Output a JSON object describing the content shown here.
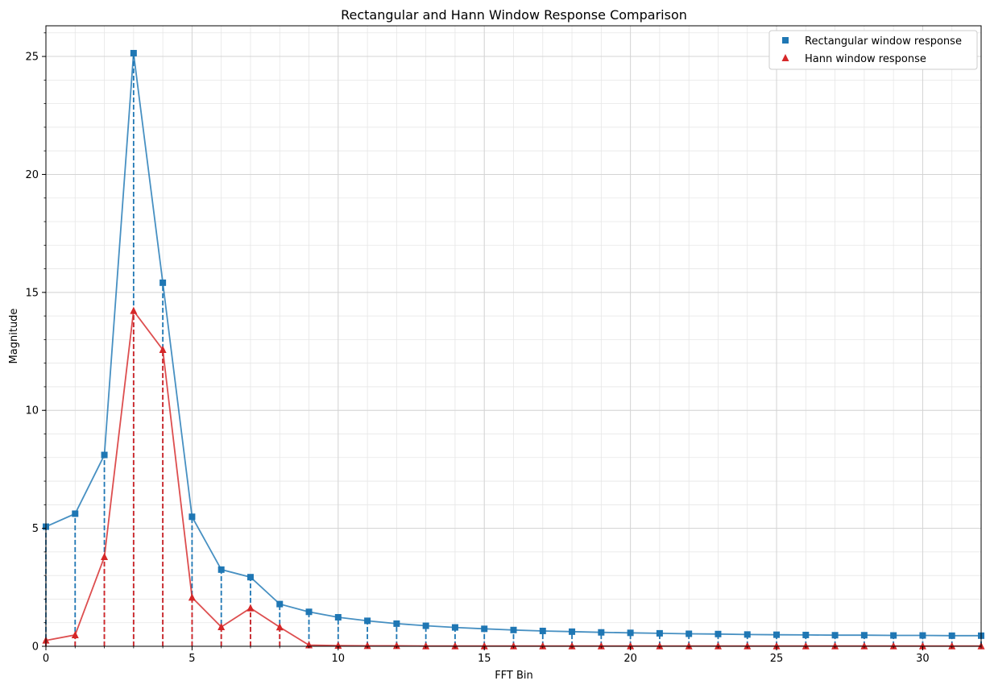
{
  "chart_data": {
    "type": "line",
    "title": "Rectangular and Hann Window Response Comparison",
    "xlabel": "FFT Bin",
    "ylabel": "Magnitude",
    "xlim": [
      0,
      32
    ],
    "ylim": [
      0,
      26.3
    ],
    "x_ticks": [
      0,
      5,
      10,
      15,
      20,
      25,
      30
    ],
    "y_ticks": [
      0,
      5,
      10,
      15,
      20,
      25
    ],
    "x_minor_step": 1,
    "y_minor_step": 1,
    "grid": true,
    "legend_position": "top-right",
    "stem_lines": true,
    "x": [
      0,
      1,
      2,
      3,
      4,
      5,
      6,
      7,
      8,
      9,
      10,
      11,
      12,
      13,
      14,
      15,
      16,
      17,
      18,
      19,
      20,
      21,
      22,
      23,
      24,
      25,
      26,
      27,
      28,
      29,
      30,
      31,
      32
    ],
    "series": [
      {
        "name": "Rectangular window response",
        "marker": "square",
        "color": "#1f77b4",
        "values": [
          5.07,
          5.62,
          8.11,
          25.14,
          15.41,
          5.49,
          3.25,
          2.93,
          1.79,
          1.46,
          1.23,
          1.08,
          0.96,
          0.87,
          0.8,
          0.74,
          0.69,
          0.65,
          0.62,
          0.59,
          0.57,
          0.55,
          0.53,
          0.52,
          0.5,
          0.49,
          0.48,
          0.47,
          0.47,
          0.46,
          0.46,
          0.45,
          0.45
        ]
      },
      {
        "name": "Hann window response",
        "marker": "triangle",
        "color": "#d62728",
        "values": [
          0.25,
          0.48,
          3.79,
          14.22,
          12.57,
          2.07,
          0.82,
          1.62,
          0.81,
          0.05,
          0.03,
          0.02,
          0.02,
          0.01,
          0.01,
          0.01,
          0.01,
          0.01,
          0.01,
          0.01,
          0.01,
          0.01,
          0.01,
          0.01,
          0.01,
          0.01,
          0.01,
          0.01,
          0.01,
          0.01,
          0.01,
          0.01,
          0.01
        ]
      }
    ]
  }
}
